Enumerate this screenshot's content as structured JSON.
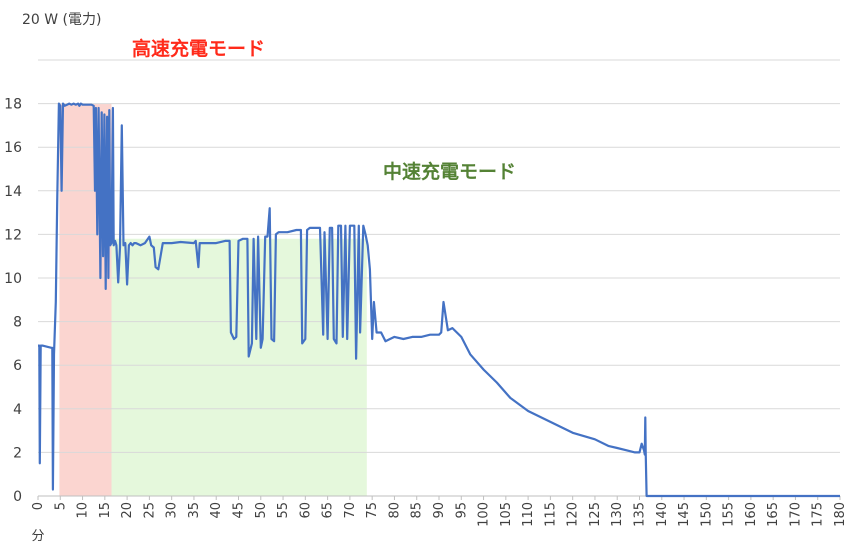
{
  "chart_data": {
    "type": "line",
    "ylabel": "20 W (電力)",
    "xlabel": "分",
    "xlim": [
      0,
      180
    ],
    "ylim": [
      0,
      20
    ],
    "x_ticks": [
      0,
      5,
      10,
      15,
      20,
      25,
      30,
      35,
      40,
      45,
      50,
      55,
      60,
      65,
      70,
      75,
      80,
      85,
      90,
      95,
      100,
      105,
      110,
      115,
      120,
      125,
      130,
      135,
      140,
      145,
      150,
      155,
      160,
      165,
      170,
      175,
      180
    ],
    "y_ticks": [
      0,
      2,
      4,
      6,
      8,
      10,
      12,
      14,
      16,
      18
    ],
    "grid": true,
    "legend": "none",
    "regions": [
      {
        "name": "高速充電モード",
        "x_start": 4.8,
        "x_end": 16.5,
        "color": "#fbd5d0",
        "label_color": "#ff2a1a"
      },
      {
        "name": "中速充電モード",
        "x_start": 16.5,
        "x_end": 73.8,
        "color": "#e5f8dc",
        "label_color": "#548235"
      }
    ],
    "series": [
      {
        "color": "#4472c4",
        "x": [
          0,
          0.3,
          0.4,
          0.6,
          1,
          2,
          3,
          3.2,
          3.35,
          3.6,
          4,
          4.3,
          4.7,
          5,
          5.3,
          5.6,
          6,
          6.5,
          7,
          7.5,
          8,
          8.5,
          9,
          9.3,
          9.6,
          10,
          11,
          12,
          12.5,
          12.8,
          13,
          13.3,
          13.6,
          14,
          14.3,
          14.6,
          14.9,
          15.2,
          15.5,
          15.8,
          16,
          16.2,
          16.5,
          16.8,
          17,
          17.3,
          17.6,
          18,
          18.4,
          18.8,
          19.2,
          19.6,
          20,
          20.4,
          20.8,
          21.2,
          21.6,
          22,
          23,
          24,
          25,
          25.4,
          26,
          26.4,
          27,
          28,
          30,
          32,
          35,
          35.4,
          36,
          36.3,
          37,
          40,
          42,
          43,
          43.3,
          44,
          44.5,
          45,
          46,
          47,
          47.3,
          48,
          48.4,
          49,
          49.4,
          50,
          50.4,
          51,
          51.5,
          52,
          52.4,
          53,
          53.4,
          54,
          55,
          56,
          58,
          59,
          59.3,
          60,
          60.4,
          61,
          62,
          63,
          63.3,
          64,
          64.3,
          65,
          65.5,
          66,
          66.4,
          67,
          67.4,
          68,
          68.4,
          69,
          69.4,
          70,
          70.4,
          71,
          71.4,
          72,
          72.3,
          73,
          73.5,
          74,
          74.5,
          75,
          75.4,
          76,
          77,
          78,
          79,
          80,
          82,
          84,
          86,
          88,
          90,
          90.5,
          91,
          92,
          93,
          95,
          97,
          100,
          103,
          106,
          110,
          115,
          120,
          125,
          128,
          130,
          132,
          134,
          135,
          135.5,
          136,
          136.2,
          136.3,
          136.4,
          136.6,
          137,
          140,
          145,
          150,
          160,
          170,
          180
        ],
        "values": [
          6.9,
          6.9,
          1.5,
          6.9,
          6.9,
          6.85,
          6.8,
          6.8,
          0.3,
          6.5,
          8.9,
          13.5,
          18.0,
          17.9,
          14.0,
          18.0,
          17.9,
          17.95,
          18.0,
          17.95,
          18.0,
          17.95,
          18.0,
          17.9,
          18.0,
          17.95,
          17.95,
          17.95,
          17.9,
          14.0,
          17.8,
          12.0,
          17.8,
          10.0,
          17.6,
          11.0,
          17.5,
          9.5,
          17.4,
          10.0,
          17.7,
          11.5,
          11.6,
          17.8,
          11.5,
          11.7,
          11.5,
          9.8,
          11.4,
          17.0,
          11.5,
          11.6,
          9.7,
          11.5,
          11.6,
          11.5,
          11.6,
          11.6,
          11.5,
          11.6,
          11.9,
          11.5,
          11.4,
          10.5,
          10.4,
          11.6,
          11.6,
          11.65,
          11.6,
          11.7,
          10.5,
          11.6,
          11.6,
          11.6,
          11.7,
          11.7,
          7.5,
          7.2,
          7.3,
          11.7,
          11.8,
          11.8,
          6.4,
          7.0,
          11.8,
          7.2,
          11.9,
          6.8,
          7.2,
          11.9,
          11.9,
          13.2,
          7.2,
          7.1,
          12.0,
          12.1,
          12.1,
          12.1,
          12.2,
          12.2,
          7.0,
          7.2,
          12.2,
          12.3,
          12.3,
          12.3,
          12.3,
          7.4,
          12.1,
          7.2,
          12.3,
          12.3,
          7.2,
          7.0,
          12.4,
          12.4,
          7.3,
          12.4,
          7.2,
          12.4,
          12.4,
          12.4,
          6.3,
          12.4,
          7.5,
          12.4,
          12.0,
          11.5,
          10.4,
          7.2,
          8.9,
          7.5,
          7.5,
          7.1,
          7.2,
          7.3,
          7.2,
          7.3,
          7.3,
          7.4,
          7.4,
          7.5,
          8.9,
          7.6,
          7.7,
          7.3,
          6.5,
          5.8,
          5.2,
          4.5,
          3.9,
          3.4,
          2.9,
          2.6,
          2.3,
          2.2,
          2.1,
          2.0,
          2.0,
          2.4,
          2.1,
          1.9,
          3.6,
          2.0,
          0.0,
          0.0,
          0.0,
          0.0,
          0.0,
          0.0,
          0.0,
          0.0
        ]
      }
    ]
  }
}
